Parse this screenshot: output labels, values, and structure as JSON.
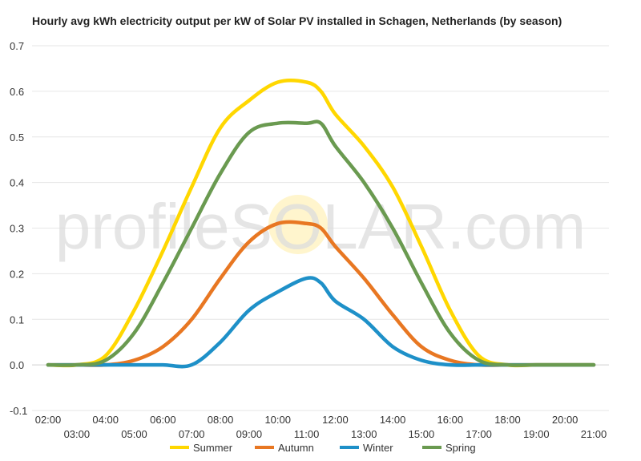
{
  "chart_data": {
    "type": "line",
    "title": "Hourly avg kWh electricity output per kW of Solar PV installed in Schagen, Netherlands (by season)",
    "xlabel": "",
    "ylabel": "",
    "ylim": [
      -0.1,
      0.7
    ],
    "y_ticks": [
      "0.7",
      "0.6",
      "0.5",
      "0.4",
      "0.3",
      "0.2",
      "0.1",
      "0.0",
      "-0.1"
    ],
    "y_tick_values": [
      0.7,
      0.6,
      0.5,
      0.4,
      0.3,
      0.2,
      0.1,
      0.0,
      -0.1
    ],
    "x_ticks_upper": [
      "02:00",
      "04:00",
      "06:00",
      "08:00",
      "10:00",
      "12:00",
      "14:00",
      "16:00",
      "18:00",
      "20:00"
    ],
    "x_ticks_lower": [
      "03:00",
      "05:00",
      "07:00",
      "09:00",
      "11:00",
      "13:00",
      "15:00",
      "17:00",
      "19:00",
      "21:00"
    ],
    "x": [
      "02:00",
      "03:00",
      "04:00",
      "05:00",
      "06:00",
      "07:00",
      "08:00",
      "09:00",
      "10:00",
      "11:00",
      "11:30",
      "12:00",
      "13:00",
      "14:00",
      "15:00",
      "16:00",
      "17:00",
      "18:00",
      "19:00",
      "20:00",
      "21:00"
    ],
    "grid": true,
    "legend_position": "bottom",
    "watermark": "profileSOLAR.com",
    "series": [
      {
        "name": "Summer",
        "color": "#ffd700",
        "values": [
          0.0,
          0.0,
          0.02,
          0.12,
          0.25,
          0.39,
          0.52,
          0.58,
          0.62,
          0.62,
          0.6,
          0.55,
          0.48,
          0.39,
          0.26,
          0.12,
          0.02,
          0.0,
          0.0,
          0.0,
          0.0
        ]
      },
      {
        "name": "Autumn",
        "color": "#e87722",
        "values": [
          0.0,
          0.0,
          0.0,
          0.01,
          0.04,
          0.1,
          0.19,
          0.27,
          0.31,
          0.31,
          0.3,
          0.26,
          0.19,
          0.11,
          0.04,
          0.01,
          0.0,
          0.0,
          0.0,
          0.0,
          0.0
        ]
      },
      {
        "name": "Winter",
        "color": "#1e90c8",
        "values": [
          0.0,
          0.0,
          0.0,
          0.0,
          0.0,
          0.0,
          0.05,
          0.12,
          0.16,
          0.19,
          0.18,
          0.14,
          0.1,
          0.04,
          0.01,
          0.0,
          0.0,
          0.0,
          0.0,
          0.0,
          0.0
        ]
      },
      {
        "name": "Spring",
        "color": "#6a9a50",
        "values": [
          0.0,
          0.0,
          0.01,
          0.07,
          0.18,
          0.3,
          0.42,
          0.51,
          0.53,
          0.53,
          0.53,
          0.48,
          0.4,
          0.3,
          0.18,
          0.07,
          0.01,
          0.0,
          0.0,
          0.0,
          0.0
        ]
      }
    ]
  }
}
